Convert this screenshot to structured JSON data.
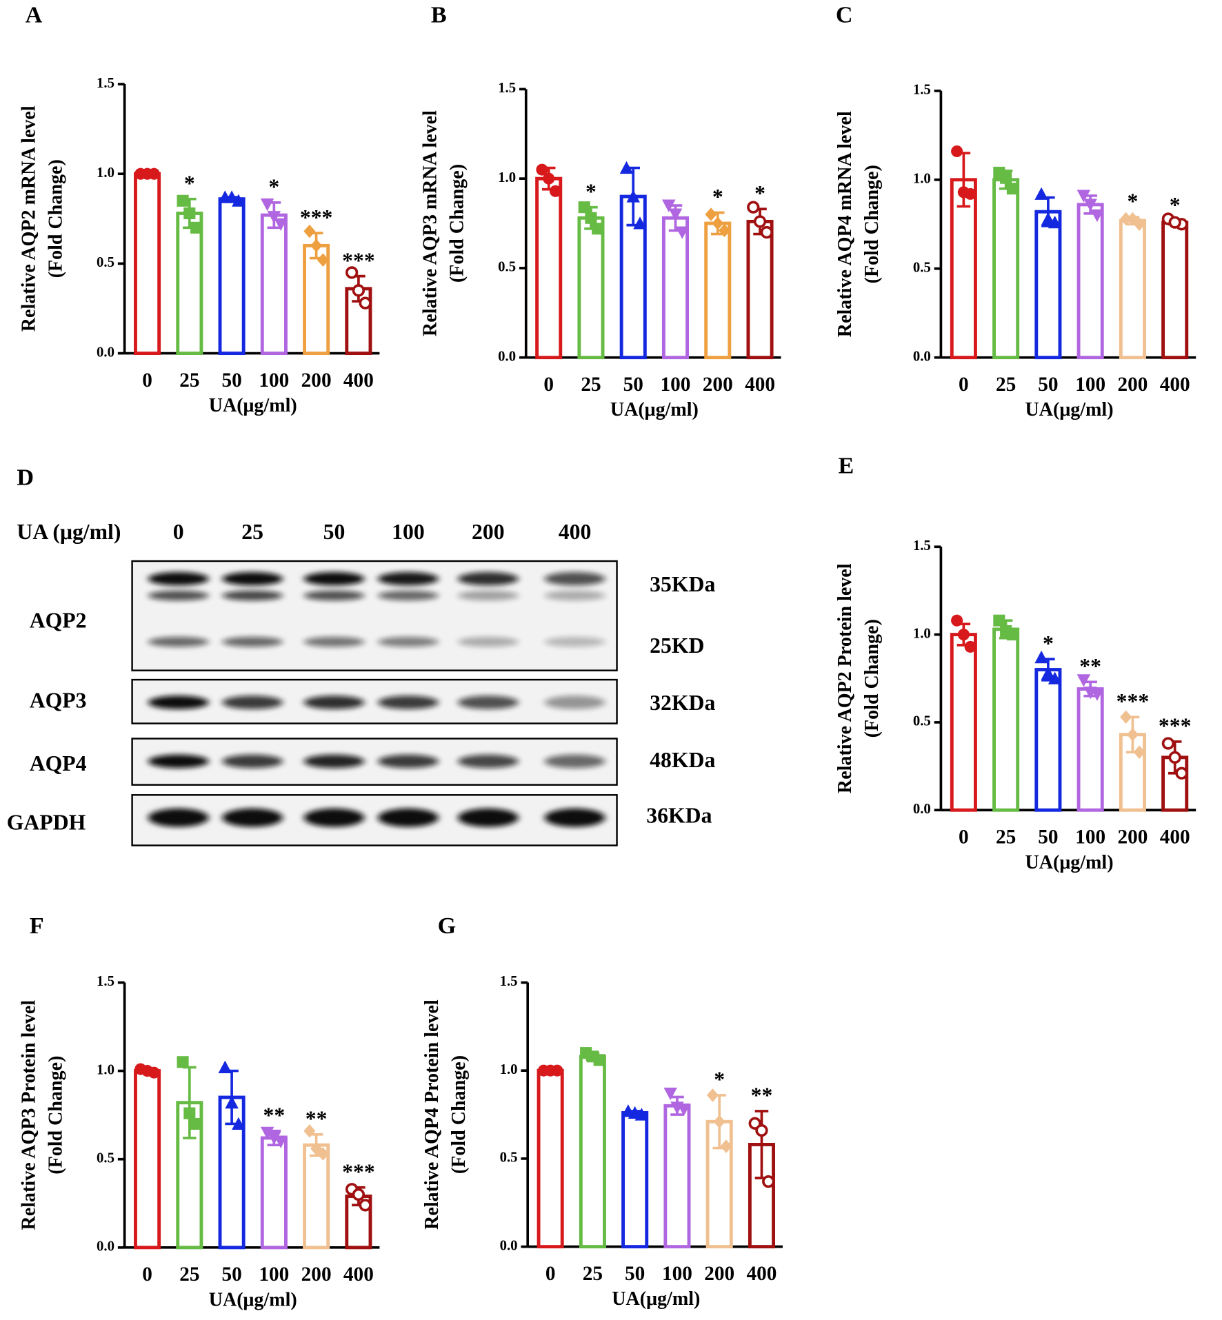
{
  "chart_data": [
    {
      "type": "bar",
      "panel": "A",
      "ylabel": [
        "Relative AQP2 mRNA level",
        "(Fold Change)"
      ],
      "xlabel": "UA(μg/ml)",
      "categories": [
        "0",
        "25",
        "50",
        "100",
        "200",
        "400"
      ],
      "values": [
        1.0,
        0.78,
        0.86,
        0.77,
        0.6,
        0.36
      ],
      "errors": [
        0.01,
        0.08,
        0.01,
        0.07,
        0.07,
        0.07
      ],
      "points": [
        [
          1.0,
          1.0,
          1.0
        ],
        [
          0.85,
          0.7,
          0.78
        ],
        [
          0.87,
          0.85,
          0.87
        ],
        [
          0.83,
          0.72,
          0.76
        ],
        [
          0.68,
          0.52,
          0.6
        ],
        [
          0.45,
          0.28,
          0.35
        ]
      ],
      "significance": [
        null,
        "*",
        null,
        "*",
        "***",
        "***"
      ],
      "colors": [
        "#d7191c",
        "#66bb44",
        "#1428e0",
        "#b066e0",
        "#eea040",
        "#a01010"
      ],
      "markers": [
        "circle",
        "square",
        "triangle",
        "down-triangle",
        "diamond",
        "open-circle"
      ],
      "ylim": [
        0,
        1.5
      ],
      "yticks": [
        {
          "value": 0,
          "label": "0.0"
        },
        0.5,
        {
          "value": 1,
          "label": "1.0"
        },
        1.5
      ]
    },
    {
      "type": "bar",
      "panel": "B",
      "ylabel": [
        "Relative AQP3 mRNA level",
        "(Fold Change)"
      ],
      "xlabel": "UA(μg/ml)",
      "categories": [
        "0",
        "25",
        "50",
        "100",
        "200",
        "400"
      ],
      "values": [
        1.0,
        0.78,
        0.9,
        0.78,
        0.75,
        0.76
      ],
      "errors": [
        0.06,
        0.06,
        0.16,
        0.07,
        0.06,
        0.07
      ],
      "points": [
        [
          1.05,
          0.93,
          1.0
        ],
        [
          0.84,
          0.72,
          0.78
        ],
        [
          1.06,
          0.75,
          0.9
        ],
        [
          0.85,
          0.7,
          0.8
        ],
        [
          0.8,
          0.71,
          0.75
        ],
        [
          0.84,
          0.7,
          0.76
        ]
      ],
      "significance": [
        null,
        "*",
        null,
        null,
        "*",
        "*"
      ],
      "colors": [
        "#d7191c",
        "#66bb44",
        "#1428e0",
        "#b066e0",
        "#eea040",
        "#a01010"
      ],
      "markers": [
        "circle",
        "square",
        "triangle",
        "down-triangle",
        "diamond",
        "open-circle"
      ],
      "ylim": [
        0,
        1.5
      ],
      "yticks": [
        {
          "value": 0,
          "label": "0.0"
        },
        0.5,
        {
          "value": 1,
          "label": "1.0"
        },
        1.5
      ]
    },
    {
      "type": "bar",
      "panel": "C",
      "ylabel": [
        "Relative AQP4 mRNA level",
        "(Fold Change)"
      ],
      "xlabel": "UA(μg/ml)",
      "categories": [
        "0",
        "25",
        "50",
        "100",
        "200",
        "400"
      ],
      "values": [
        1.0,
        1.0,
        0.82,
        0.86,
        0.77,
        0.76
      ],
      "errors": [
        0.15,
        0.05,
        0.08,
        0.05,
        0.02,
        0.01
      ],
      "points": [
        [
          1.16,
          0.92,
          0.93
        ],
        [
          1.04,
          0.95,
          1.01
        ],
        [
          0.92,
          0.76,
          0.78
        ],
        [
          0.91,
          0.8,
          0.86
        ],
        [
          0.78,
          0.75,
          0.78
        ],
        [
          0.78,
          0.75,
          0.76
        ]
      ],
      "significance": [
        null,
        null,
        null,
        null,
        "*",
        "*"
      ],
      "colors": [
        "#d7191c",
        "#66bb44",
        "#1428e0",
        "#b066e0",
        "#f0c090",
        "#a01010"
      ],
      "markers": [
        "circle",
        "square",
        "triangle",
        "down-triangle",
        "diamond",
        "open-circle"
      ],
      "ylim": [
        0,
        1.5
      ],
      "yticks": [
        {
          "value": 0,
          "label": "0.0"
        },
        0.5,
        {
          "value": 1,
          "label": "1.0"
        },
        1.5
      ]
    },
    {
      "type": "bar",
      "panel": "E",
      "ylabel": [
        "Relative AQP2 Protein level",
        "(Fold Change)"
      ],
      "xlabel": "UA(μg/ml)",
      "categories": [
        "0",
        "25",
        "50",
        "100",
        "200",
        "400"
      ],
      "values": [
        1.0,
        1.03,
        0.8,
        0.69,
        0.43,
        0.3
      ],
      "errors": [
        0.06,
        0.05,
        0.06,
        0.04,
        0.1,
        0.09
      ],
      "points": [
        [
          1.08,
          0.93,
          1.0
        ],
        [
          1.08,
          1.0,
          1.02
        ],
        [
          0.87,
          0.75,
          0.78
        ],
        [
          0.74,
          0.66,
          0.67
        ],
        [
          0.53,
          0.33,
          0.43
        ],
        [
          0.38,
          0.21,
          0.3
        ]
      ],
      "significance": [
        null,
        null,
        "*",
        "**",
        "***",
        "***"
      ],
      "colors": [
        "#d7191c",
        "#66bb44",
        "#1428e0",
        "#b066e0",
        "#f0c090",
        "#a01010"
      ],
      "markers": [
        "circle",
        "square",
        "triangle",
        "down-triangle",
        "diamond",
        "open-circle"
      ],
      "ylim": [
        0,
        1.5
      ],
      "yticks": [
        {
          "value": 0,
          "label": "0.0"
        },
        0.5,
        {
          "value": 1,
          "label": "1.0"
        },
        1.5
      ]
    },
    {
      "type": "bar",
      "panel": "F",
      "ylabel": [
        "Relative AQP3 Protein level",
        "(Fold Change)"
      ],
      "xlabel": "UA(μg/ml)",
      "categories": [
        "0",
        "25",
        "50",
        "100",
        "200",
        "400"
      ],
      "values": [
        1.0,
        0.82,
        0.85,
        0.62,
        0.58,
        0.29
      ],
      "errors": [
        0.01,
        0.2,
        0.15,
        0.04,
        0.06,
        0.05
      ],
      "points": [
        [
          1.01,
          0.99,
          1.0
        ],
        [
          1.05,
          0.7,
          0.76
        ],
        [
          1.02,
          0.7,
          0.82
        ],
        [
          0.65,
          0.6,
          0.62
        ],
        [
          0.66,
          0.53,
          0.56
        ],
        [
          0.33,
          0.24,
          0.3
        ]
      ],
      "significance": [
        null,
        null,
        null,
        "**",
        "**",
        "***"
      ],
      "colors": [
        "#d7191c",
        "#66bb44",
        "#1428e0",
        "#b066e0",
        "#f0c090",
        "#a01010"
      ],
      "markers": [
        "circle",
        "square",
        "triangle",
        "down-triangle",
        "diamond",
        "open-circle"
      ],
      "ylim": [
        0,
        1.5
      ],
      "yticks": [
        {
          "value": 0,
          "label": "0.0"
        },
        0.5,
        {
          "value": 1,
          "label": "1.0"
        },
        1.5
      ]
    },
    {
      "type": "bar",
      "panel": "G",
      "ylabel": [
        "Relative AQP4 Protein level",
        "(Fold Change)"
      ],
      "xlabel": "UA(μg/ml)",
      "categories": [
        "0",
        "25",
        "50",
        "100",
        "200",
        "400"
      ],
      "values": [
        1.0,
        1.08,
        0.76,
        0.8,
        0.71,
        0.58
      ],
      "errors": [
        0.005,
        0.02,
        0.01,
        0.05,
        0.15,
        0.19
      ],
      "points": [
        [
          1.0,
          1.0,
          1.0
        ],
        [
          1.1,
          1.06,
          1.08
        ],
        [
          0.77,
          0.75,
          0.76
        ],
        [
          0.87,
          0.78,
          0.79
        ],
        [
          0.86,
          0.57,
          0.71
        ],
        [
          0.7,
          0.37,
          0.66
        ]
      ],
      "significance": [
        null,
        null,
        null,
        null,
        "*",
        "**"
      ],
      "colors": [
        "#d7191c",
        "#66bb44",
        "#1428e0",
        "#b066e0",
        "#f0c090",
        "#a01010"
      ],
      "markers": [
        "circle",
        "square",
        "triangle",
        "down-triangle",
        "diamond",
        "open-circle"
      ],
      "ylim": [
        0,
        1.5
      ],
      "yticks": [
        {
          "value": 0,
          "label": "0.0"
        },
        0.5,
        {
          "value": 1,
          "label": "1.0"
        },
        1.5
      ]
    }
  ],
  "blot": {
    "panel": "D",
    "treatment_label": "UA (μg/ml)",
    "lanes": [
      "0",
      "25",
      "50",
      "100",
      "200",
      "400"
    ],
    "rows": [
      {
        "name": "AQP2",
        "sizes": [
          "35KDa",
          "25KD"
        ]
      },
      {
        "name": "AQP3",
        "sizes": [
          "32KDa"
        ]
      },
      {
        "name": "AQP4",
        "sizes": [
          "48KDa"
        ]
      },
      {
        "name": "GAPDH",
        "sizes": [
          "36KDa"
        ]
      }
    ]
  }
}
